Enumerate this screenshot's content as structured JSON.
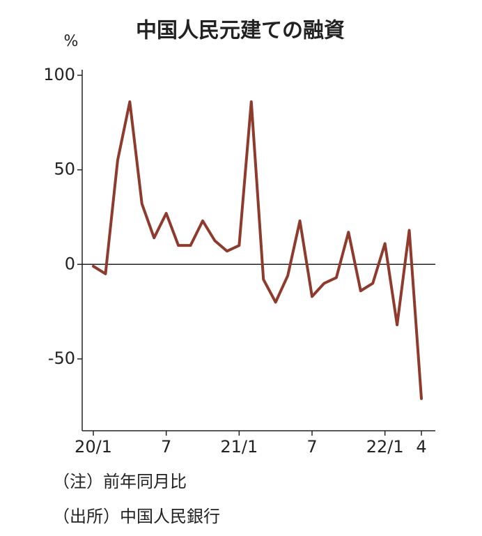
{
  "chart_data": {
    "type": "line",
    "title": "中国人民元建ての融資",
    "y_unit": "%",
    "categories": [
      "20/1",
      null,
      null,
      null,
      null,
      null,
      "7",
      null,
      null,
      null,
      null,
      null,
      "21/1",
      null,
      null,
      null,
      null,
      null,
      "7",
      null,
      null,
      null,
      null,
      null,
      "22/1",
      null,
      null,
      "4"
    ],
    "series": [
      {
        "color": "#8e3a2c",
        "values": [
          -1,
          -5,
          55,
          86,
          32,
          14,
          27,
          10,
          10,
          23,
          12.5,
          7,
          10,
          86,
          -8,
          -20,
          -6,
          23,
          -17,
          -10,
          -7,
          17,
          -14,
          -10,
          11,
          -32,
          18,
          -71
        ]
      }
    ],
    "ylim": [
      -88,
      100
    ],
    "yticks": [
      100,
      50,
      0,
      -50
    ],
    "zero_line": true,
    "notes": [
      "（注）前年同月比",
      "（出所）中国人民銀行"
    ]
  }
}
